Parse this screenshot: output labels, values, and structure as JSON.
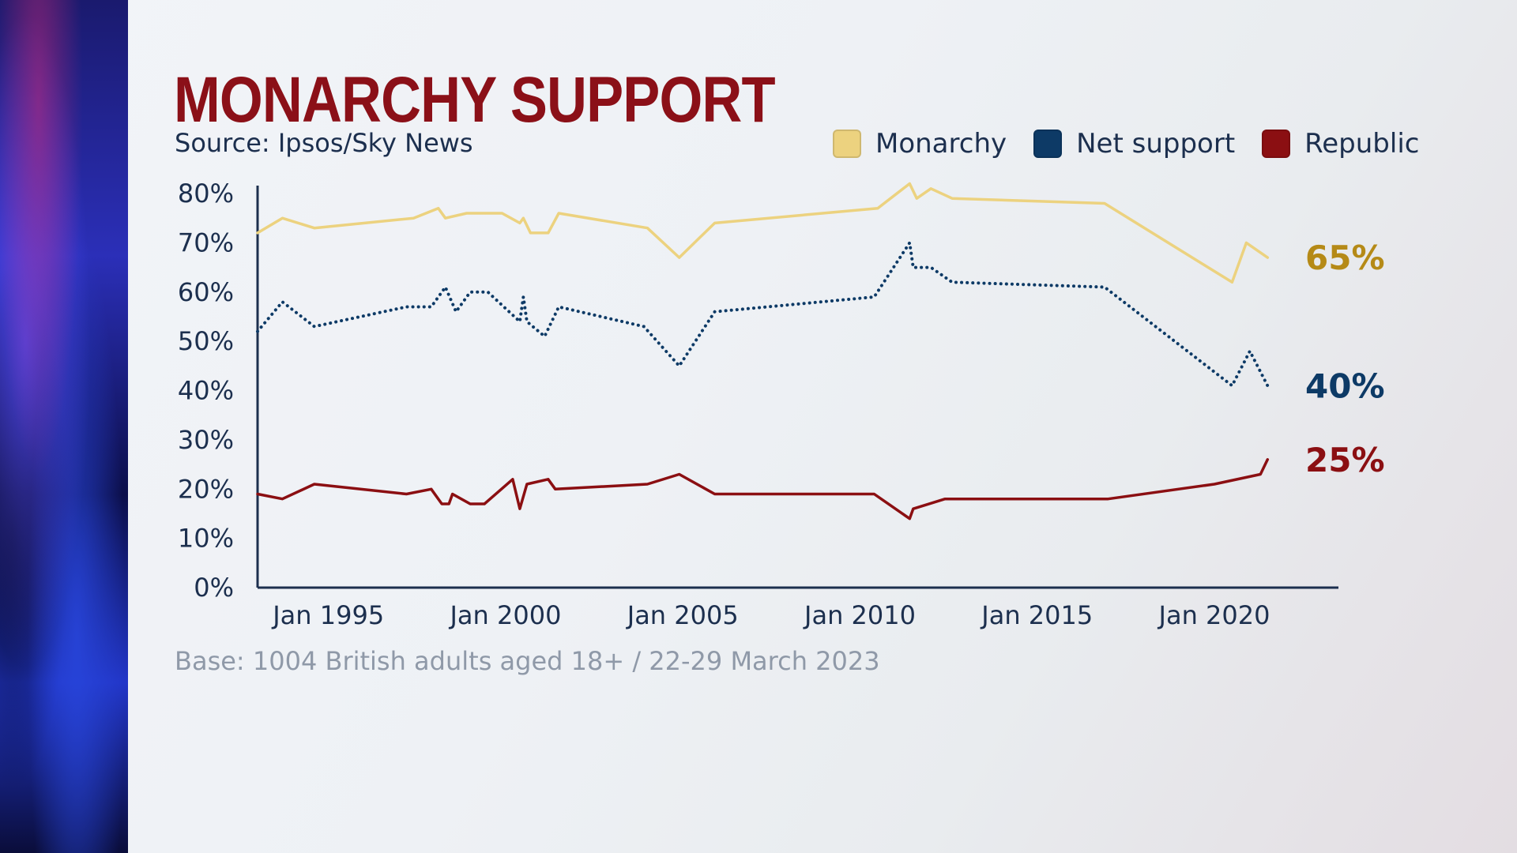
{
  "title": "MONARCHY SUPPORT",
  "subtitle": "Source: Ipsos/Sky News",
  "footnote": "Base: 1004 British adults aged 18+ / 22-29 March 2023",
  "legend": [
    {
      "label": "Monarchy",
      "color": "#ecd27f"
    },
    {
      "label": "Net support",
      "color": "#0d3a66"
    },
    {
      "label": "Republic",
      "color": "#8b0f12"
    }
  ],
  "chart_data": {
    "type": "line",
    "title": "MONARCHY SUPPORT",
    "xlim": [
      1993.0,
      2023.5
    ],
    "ylim": [
      0,
      80
    ],
    "grid": false,
    "legend_position": "top-right",
    "y_ticks": [
      "0%",
      "10%",
      "20%",
      "30%",
      "40%",
      "50%",
      "60%",
      "70%",
      "80%"
    ],
    "x_ticks": [
      {
        "label": "Jan 1995",
        "value": 1995
      },
      {
        "label": "Jan 2000",
        "value": 2000
      },
      {
        "label": "Jan 2005",
        "value": 2005
      },
      {
        "label": "Jan 2010",
        "value": 2010
      },
      {
        "label": "Jan 2015",
        "value": 2015
      },
      {
        "label": "Jan 2020",
        "value": 2020
      }
    ],
    "series": [
      {
        "name": "Monarchy",
        "color": "#ecd27f",
        "style": "solid",
        "end_label": "65%",
        "end_label_color": "#b58a17",
        "x": [
          1993.0,
          1993.7,
          1994.6,
          1997.4,
          1998.1,
          1998.3,
          1998.9,
          1999.9,
          2000.4,
          2000.5,
          2000.7,
          2001.2,
          2001.5,
          2004.0,
          2004.9,
          2005.9,
          2010.5,
          2011.4,
          2011.6,
          2012.0,
          2012.6,
          2016.9,
          2020.5,
          2020.9,
          2021.5
        ],
        "y": [
          72,
          75,
          73,
          75,
          77,
          75,
          76,
          76,
          74,
          75,
          72,
          72,
          76,
          73,
          67,
          74,
          77,
          82,
          79,
          81,
          79,
          78,
          62,
          70,
          67
        ]
      },
      {
        "name": "Net support",
        "color": "#0d3a66",
        "style": "dotted",
        "end_label": "40%",
        "end_label_color": "#0d3a66",
        "x": [
          1993.0,
          1993.7,
          1994.6,
          1997.2,
          1997.9,
          1998.3,
          1998.6,
          1999.0,
          1999.5,
          2000.4,
          2000.5,
          2000.6,
          2001.1,
          2001.5,
          2003.9,
          2004.9,
          2005.9,
          2010.4,
          2011.4,
          2011.5,
          2012.0,
          2012.6,
          2016.9,
          2020.5,
          2021.0,
          2021.5
        ],
        "y": [
          52,
          58,
          53,
          57,
          57,
          61,
          56,
          60,
          60,
          54,
          59,
          54,
          51,
          57,
          53,
          45,
          56,
          59,
          70,
          65,
          65,
          62,
          61,
          41,
          48,
          41
        ]
      },
      {
        "name": "Republic",
        "color": "#8b0f12",
        "style": "solid",
        "end_label": "25%",
        "end_label_color": "#8b0f12",
        "x": [
          1993.0,
          1993.7,
          1994.6,
          1997.2,
          1997.9,
          1998.2,
          1998.4,
          1998.5,
          1999.0,
          1999.4,
          2000.2,
          2000.4,
          2000.6,
          2001.2,
          2001.4,
          2004.0,
          2004.9,
          2005.9,
          2010.4,
          2011.4,
          2011.5,
          2012.4,
          2017.0,
          2020.0,
          2021.3,
          2021.5
        ],
        "y": [
          19,
          18,
          21,
          19,
          20,
          17,
          17,
          19,
          17,
          17,
          22,
          16,
          21,
          22,
          20,
          21,
          23,
          19,
          19,
          14,
          16,
          18,
          18,
          21,
          23,
          26
        ]
      }
    ]
  }
}
